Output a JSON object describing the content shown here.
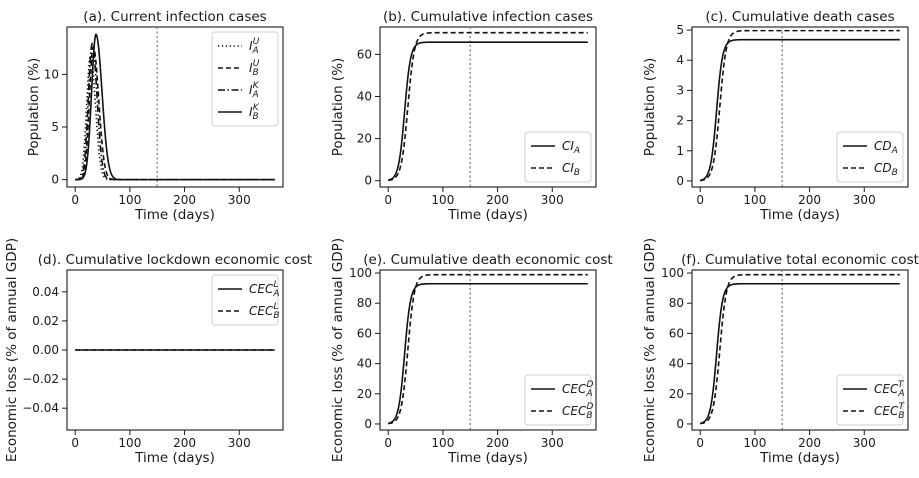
{
  "figure": {
    "caption_letters": "a-f",
    "x_axis_label": "Time (days)"
  },
  "chart_data": [
    {
      "id": "a",
      "type": "line",
      "title": "(a). Current infection cases",
      "xlabel": "Time (days)",
      "ylabel": "Population (%)",
      "xlim": [
        -15,
        380
      ],
      "ylim": [
        -0.7,
        14.5
      ],
      "xticks": [
        0,
        100,
        200,
        300
      ],
      "yticks": [
        0,
        5,
        10
      ],
      "ytick_labels": [
        "0",
        "5",
        "10"
      ],
      "policy_day": 150,
      "legend_position": "top-right",
      "series": [
        {
          "name": "I_A^U",
          "base": "I",
          "sub": "A",
          "sup": "U",
          "dash": "1.3 2.6",
          "kind": "peak",
          "peak": 11.8,
          "center": 28,
          "rise": 7,
          "fall": 9
        },
        {
          "name": "I_B^U",
          "base": "I",
          "sub": "B",
          "sup": "U",
          "dash": "5 3",
          "kind": "peak",
          "peak": 12.6,
          "center": 33,
          "rise": 7,
          "fall": 10
        },
        {
          "name": "I_A^K",
          "base": "I",
          "sub": "A",
          "sup": "K",
          "dash": "7 2.5 1.5 2.5",
          "kind": "peak",
          "peak": 12.9,
          "center": 31,
          "rise": 7,
          "fall": 9
        },
        {
          "name": "I_B^K",
          "base": "I",
          "sub": "B",
          "sup": "K",
          "dash": "",
          "kind": "peak",
          "peak": 13.8,
          "center": 38,
          "rise": 8,
          "fall": 11
        }
      ]
    },
    {
      "id": "b",
      "type": "line",
      "title": "(b). Cumulative infection cases",
      "xlabel": "Time (days)",
      "ylabel": "Population (%)",
      "xlim": [
        -15,
        380
      ],
      "ylim": [
        -3,
        73
      ],
      "xticks": [
        0,
        100,
        200,
        300
      ],
      "yticks": [
        0,
        20,
        40,
        60
      ],
      "ytick_labels": [
        "0",
        "20",
        "40",
        "60"
      ],
      "policy_day": 150,
      "legend_position": "bottom-right",
      "series": [
        {
          "name": "CI_A",
          "base": "CI",
          "sub": "A",
          "sup": "",
          "dash": "",
          "kind": "sigmoid",
          "final": 65.8,
          "mid": 30,
          "width": 5.5
        },
        {
          "name": "CI_B",
          "base": "CI",
          "sub": "B",
          "sup": "",
          "dash": "5 3",
          "kind": "sigmoid",
          "final": 70.3,
          "mid": 36,
          "width": 6
        }
      ]
    },
    {
      "id": "c",
      "type": "line",
      "title": "(c). Cumulative death cases",
      "xlabel": "Time (days)",
      "ylabel": "Population (%)",
      "xlim": [
        -15,
        380
      ],
      "ylim": [
        -0.2,
        5.1
      ],
      "xticks": [
        0,
        100,
        200,
        300
      ],
      "yticks": [
        0,
        1,
        2,
        3,
        4,
        5
      ],
      "ytick_labels": [
        "0",
        "1",
        "2",
        "3",
        "4",
        "5"
      ],
      "policy_day": 150,
      "legend_position": "bottom-right",
      "series": [
        {
          "name": "CD_A",
          "base": "CD",
          "sub": "A",
          "sup": "",
          "dash": "",
          "kind": "sigmoid",
          "final": 4.68,
          "mid": 30,
          "width": 5.5
        },
        {
          "name": "CD_B",
          "base": "CD",
          "sub": "B",
          "sup": "",
          "dash": "5 3",
          "kind": "sigmoid",
          "final": 4.98,
          "mid": 36,
          "width": 6
        }
      ]
    },
    {
      "id": "d",
      "type": "line",
      "title": "(d). Cumulative lockdown economic cost",
      "xlabel": "Time (days)",
      "ylabel": "Economic loss (% of annual GDP)",
      "xlim": [
        -15,
        380
      ],
      "ylim": [
        -0.055,
        0.055
      ],
      "xticks": [
        0,
        100,
        200,
        300
      ],
      "yticks": [
        0.04,
        0.02,
        0,
        -0.02,
        -0.04
      ],
      "ytick_labels": [
        "0.04",
        "0.02",
        "0.00",
        "−0.02",
        "−0.04"
      ],
      "policy_day": null,
      "legend_position": "top-right",
      "series": [
        {
          "name": "CEC_A^L",
          "base": "CEC",
          "sub": "A",
          "sup": "L",
          "dash": "",
          "kind": "flat",
          "value": 0
        },
        {
          "name": "CEC_B^L",
          "base": "CEC",
          "sub": "B",
          "sup": "L",
          "dash": "5 3",
          "kind": "flat",
          "value": 0
        }
      ]
    },
    {
      "id": "e",
      "type": "line",
      "title": "(e). Cumulative death economic cost",
      "xlabel": "Time (days)",
      "ylabel": "Economic loss (% of annual GDP)",
      "xlim": [
        -15,
        380
      ],
      "ylim": [
        -4,
        102
      ],
      "xticks": [
        0,
        100,
        200,
        300
      ],
      "yticks": [
        0,
        20,
        40,
        60,
        80,
        100
      ],
      "ytick_labels": [
        "0",
        "20",
        "40",
        "60",
        "80",
        "100"
      ],
      "policy_day": 150,
      "legend_position": "bottom-right",
      "series": [
        {
          "name": "CEC_A^D",
          "base": "CEC",
          "sub": "A",
          "sup": "D",
          "dash": "",
          "kind": "sigmoid",
          "final": 92.9,
          "mid": 30,
          "width": 5.5
        },
        {
          "name": "CEC_B^D",
          "base": "CEC",
          "sub": "B",
          "sup": "D",
          "dash": "5 3",
          "kind": "sigmoid",
          "final": 98.9,
          "mid": 36,
          "width": 6
        }
      ]
    },
    {
      "id": "f",
      "type": "line",
      "title": "(f). Cumulative total economic cost",
      "xlabel": "Time (days)",
      "ylabel": "Economic loss (% of annual GDP)",
      "xlim": [
        -15,
        380
      ],
      "ylim": [
        -4,
        102
      ],
      "xticks": [
        0,
        100,
        200,
        300
      ],
      "yticks": [
        0,
        20,
        40,
        60,
        80,
        100
      ],
      "ytick_labels": [
        "0",
        "20",
        "40",
        "60",
        "80",
        "100"
      ],
      "policy_day": 150,
      "legend_position": "bottom-right",
      "series": [
        {
          "name": "CEC_A^T",
          "base": "CEC",
          "sub": "A",
          "sup": "T",
          "dash": "",
          "kind": "sigmoid",
          "final": 92.9,
          "mid": 30,
          "width": 5.5
        },
        {
          "name": "CEC_B^T",
          "base": "CEC",
          "sub": "B",
          "sup": "T",
          "dash": "5 3",
          "kind": "sigmoid",
          "final": 98.9,
          "mid": 36,
          "width": 6
        }
      ]
    }
  ]
}
